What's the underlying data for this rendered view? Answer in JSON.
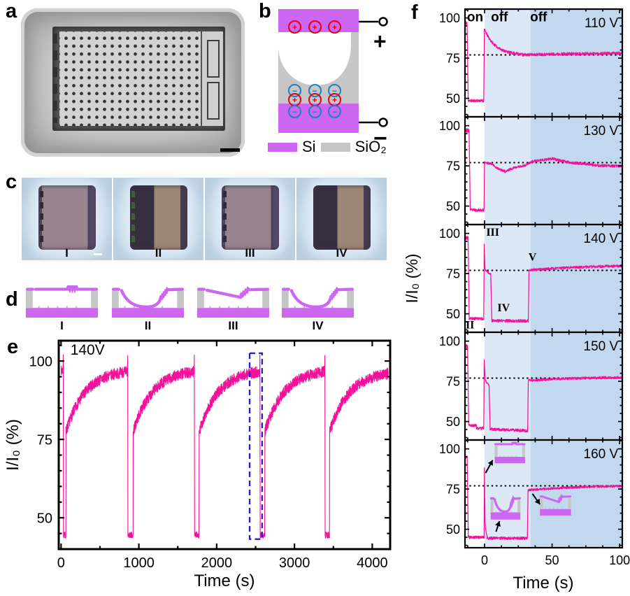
{
  "materials": {
    "si_color": "#cd66f1",
    "sio2_color": "#c6c6c6"
  },
  "panels": {
    "a": {
      "label": "a"
    },
    "b": {
      "label": "b",
      "plus": "+",
      "minus": "−",
      "legend": [
        {
          "label": "Si",
          "color": "#cd66f1"
        },
        {
          "label": "SiO₂",
          "color": "#c3c3c3"
        }
      ]
    },
    "c": {
      "label": "c",
      "item_labels": [
        "I",
        "II",
        "III",
        "IV"
      ]
    },
    "d": {
      "label": "d",
      "item_labels": [
        "I",
        "II",
        "III",
        "IV"
      ],
      "states": [
        "flat",
        "sag",
        "tilt",
        "sag"
      ]
    },
    "e": {
      "label": "e"
    },
    "f": {
      "label": "f"
    }
  },
  "chart_data": [
    {
      "id": "panel-e",
      "type": "line",
      "voltage_annotation": "140V",
      "xlabel": "Time (s)",
      "ylabel": "I/I₀ (%)",
      "xlim": [
        -30,
        4230
      ],
      "ylim": [
        40,
        106.5
      ],
      "xticks": [
        0,
        1000,
        2000,
        3000,
        4000
      ],
      "xminor_step": 500,
      "yticks": [
        50,
        75,
        100
      ],
      "yminor_step": 5,
      "line_color": "#F4109B",
      "seed": 7,
      "highlight_box": {
        "t0": 2424,
        "t1": 2584,
        "v0": 43.2,
        "v1": 102.5,
        "color": "#2222DD"
      },
      "segments": [
        [
          0,
          25,
          97,
          97,
          0,
          1.5
        ],
        [
          25,
          28,
          97,
          101.5,
          0,
          0.5
        ],
        [
          28,
          31,
          101.5,
          45,
          0,
          0.5
        ],
        [
          31,
          62,
          44.5,
          44.5,
          0,
          1.0
        ],
        [
          62,
          63,
          44.5,
          77,
          0,
          0.3
        ],
        [
          63,
          853,
          77.5,
          97.5,
          250,
          1.8
        ],
        [
          853,
          856,
          97,
          101.5,
          0,
          0.5
        ],
        [
          856,
          859,
          101.5,
          45,
          0,
          0.5
        ],
        [
          859,
          925,
          44.5,
          44.5,
          0,
          1.0
        ],
        [
          925,
          927,
          44.5,
          77,
          0,
          0.3
        ],
        [
          927,
          1710,
          77.5,
          97.5,
          250,
          1.8
        ],
        [
          1710,
          1713,
          97,
          101.5,
          0,
          0.5
        ],
        [
          1713,
          1716,
          101.5,
          45,
          0,
          0.5
        ],
        [
          1716,
          1773,
          44.5,
          44.5,
          0,
          1.0
        ],
        [
          1773,
          1775,
          44.5,
          77,
          0,
          0.3
        ],
        [
          1775,
          2553,
          77.5,
          97.5,
          250,
          1.8
        ],
        [
          2553,
          2556,
          97,
          101.5,
          0,
          0.5
        ],
        [
          2556,
          2559,
          101.5,
          45,
          0,
          0.5
        ],
        [
          2559,
          2618,
          44.5,
          44.5,
          0,
          1.0
        ],
        [
          2618,
          2620,
          44.5,
          77,
          0,
          0.3
        ],
        [
          2620,
          3388,
          77.5,
          97.5,
          250,
          1.8
        ],
        [
          3388,
          3391,
          97,
          101.5,
          0,
          0.5
        ],
        [
          3391,
          3394,
          101.5,
          45,
          0,
          0.5
        ],
        [
          3394,
          3450,
          44.5,
          44.5,
          0,
          1.0
        ],
        [
          3450,
          3452,
          44.5,
          77,
          0,
          0.3
        ],
        [
          3452,
          4205,
          77.5,
          97,
          250,
          1.8
        ]
      ]
    },
    {
      "id": "panel-f-110",
      "type": "line",
      "voltage": "110 V",
      "seed": 11,
      "xlim": [
        -14.5,
        102
      ],
      "ylim": [
        38.5,
        105.5
      ],
      "xticks": [
        0,
        50,
        100
      ],
      "xminor_step": 12.5,
      "yticks": [
        50,
        75,
        100
      ],
      "yminor_step": 5,
      "line_color": "#F4109B",
      "dotted_line": 77,
      "bands": [
        [
          0,
          34,
          "#dce8f6"
        ],
        [
          34,
          102,
          "#c2d8ee"
        ]
      ],
      "region_labels": [
        {
          "text": "on",
          "t": -7,
          "v": 101
        },
        {
          "text": "off",
          "t": 11,
          "v": 101
        },
        {
          "text": "off",
          "t": 40,
          "v": 101
        }
      ],
      "segments": [
        [
          -14.5,
          -13,
          97,
          97,
          0,
          1.3
        ],
        [
          -13,
          -12.1,
          97,
          49,
          0,
          0.5
        ],
        [
          -12.1,
          -0.6,
          48.5,
          48.5,
          0,
          0.9
        ],
        [
          -0.6,
          -0.1,
          48.5,
          93,
          0,
          0.3
        ],
        [
          -0.1,
          28,
          93,
          77,
          8,
          0.9
        ],
        [
          28,
          101.5,
          77,
          78.2,
          40,
          0.9
        ]
      ]
    },
    {
      "id": "panel-f-130",
      "type": "line",
      "voltage": "130 V",
      "seed": 23,
      "xlim": [
        -14.5,
        102
      ],
      "ylim": [
        38.5,
        105.5
      ],
      "xticks": [
        0,
        50,
        100
      ],
      "xminor_step": 12.5,
      "yticks": [
        50,
        75,
        100
      ],
      "yminor_step": 5,
      "line_color": "#F4109B",
      "dotted_line": 77,
      "bands": [
        [
          0,
          34,
          "#dce8f6"
        ],
        [
          34,
          102,
          "#c2d8ee"
        ]
      ],
      "segments": [
        [
          -14.5,
          -11.5,
          97,
          97,
          0,
          1.3
        ],
        [
          -11.5,
          -10.6,
          97,
          48,
          0,
          0.5
        ],
        [
          -10.6,
          -0.4,
          47.5,
          47.5,
          0,
          0.9
        ],
        [
          -0.4,
          0,
          47.5,
          77.5,
          0,
          0.3
        ],
        [
          0,
          6,
          77,
          76,
          6,
          0.7
        ],
        [
          6,
          15,
          76,
          71,
          5,
          0.7
        ],
        [
          15,
          31,
          71,
          76.2,
          9,
          0.7
        ],
        [
          31,
          50,
          76.2,
          79.6,
          9,
          0.8
        ],
        [
          50,
          80,
          79.6,
          75.3,
          16,
          0.8
        ],
        [
          80,
          101.5,
          75.3,
          74.8,
          0,
          0.8
        ]
      ]
    },
    {
      "id": "panel-f-140",
      "type": "line",
      "voltage": "140 V",
      "seed": 37,
      "ylabel": "I/I₀ (%)",
      "xlim": [
        -14.5,
        102
      ],
      "ylim": [
        38.5,
        105.5
      ],
      "xticks": [
        0,
        50,
        100
      ],
      "xminor_step": 12.5,
      "yticks": [
        50,
        75,
        100
      ],
      "yminor_step": 5,
      "line_color": "#F4109B",
      "dotted_line": 77,
      "bands": [
        [
          0,
          34,
          "#dce8f6"
        ],
        [
          34,
          102,
          "#c2d8ee"
        ]
      ],
      "roman_annotations": [
        {
          "text": "II",
          "t": -14,
          "v": 41
        },
        {
          "text": "III",
          "t": 1.2,
          "v": 98.5
        },
        {
          "text": "IV",
          "t": 9.5,
          "v": 51.5
        },
        {
          "text": "V",
          "t": 32.5,
          "v": 83
        }
      ],
      "segments": [
        [
          -14.5,
          -12.2,
          97,
          97,
          0,
          1.3
        ],
        [
          -12.2,
          -11.4,
          97,
          48,
          0,
          0.5
        ],
        [
          -11.4,
          -0.6,
          47,
          47,
          0,
          0.9
        ],
        [
          -0.6,
          -0.25,
          47,
          93,
          0,
          0.3
        ],
        [
          -0.25,
          0.35,
          93,
          78,
          0,
          0.4
        ],
        [
          0.35,
          4.6,
          77.5,
          73.5,
          4,
          0.6
        ],
        [
          4.6,
          5.4,
          73.5,
          46,
          0,
          0.4
        ],
        [
          5.4,
          32.4,
          45.6,
          45.6,
          0,
          0.9
        ],
        [
          32.4,
          32.9,
          45.6,
          77,
          0,
          0.3
        ],
        [
          32.9,
          101.5,
          77,
          80.5,
          45,
          0.8
        ]
      ]
    },
    {
      "id": "panel-f-150",
      "type": "line",
      "voltage": "150 V",
      "seed": 49,
      "xlim": [
        -14.5,
        102
      ],
      "ylim": [
        38.5,
        105.5
      ],
      "xticks": [
        0,
        50,
        100
      ],
      "xminor_step": 12.5,
      "yticks": [
        50,
        75,
        100
      ],
      "yminor_step": 5,
      "line_color": "#F4109B",
      "dotted_line": 77,
      "bands": [
        [
          0,
          34,
          "#dce8f6"
        ],
        [
          34,
          102,
          "#c2d8ee"
        ]
      ],
      "segments": [
        [
          -14.5,
          -12.6,
          97,
          97,
          0,
          1.3
        ],
        [
          -12.6,
          -11.8,
          97,
          49,
          0,
          0.5
        ],
        [
          -11.8,
          -6,
          47.5,
          47.5,
          0,
          0.9
        ],
        [
          -6,
          -0.6,
          45.8,
          45.8,
          0,
          0.9
        ],
        [
          -0.6,
          -0.25,
          45.8,
          88,
          0,
          0.3
        ],
        [
          -0.25,
          0.5,
          88,
          76,
          0,
          0.4
        ],
        [
          0.5,
          3.4,
          76,
          71,
          2.5,
          0.5
        ],
        [
          3.4,
          4.1,
          71,
          46,
          0,
          0.4
        ],
        [
          4.1,
          31.9,
          45.2,
          44.3,
          0,
          0.9
        ],
        [
          31.9,
          32.4,
          44.3,
          75.5,
          0,
          0.3
        ],
        [
          32.4,
          101.5,
          75.5,
          77.8,
          40,
          0.8
        ]
      ]
    },
    {
      "id": "panel-f-160",
      "type": "line",
      "voltage": "160 V",
      "seed": 61,
      "xlabel": "Time (s)",
      "xlim": [
        -14.5,
        102
      ],
      "ylim": [
        38.5,
        105.5
      ],
      "xticks": [
        0,
        50,
        100
      ],
      "xminor_step": 12.5,
      "yticks": [
        50,
        75,
        100
      ],
      "yminor_step": 5,
      "line_color": "#F4109B",
      "dotted_line": 77,
      "bands": [
        [
          0,
          34,
          "#dce8f6"
        ],
        [
          34,
          102,
          "#c2d8ee"
        ]
      ],
      "insets": [
        {
          "state": "flat",
          "t0": 7.5,
          "t1": 30,
          "v0": 91,
          "v1": 104.5
        },
        {
          "state": "sag",
          "t0": 4.5,
          "t1": 26.5,
          "v0": 56,
          "v1": 71
        },
        {
          "state": "tilt",
          "t0": 41,
          "t1": 64,
          "v0": 58.5,
          "v1": 72
        }
      ],
      "arrows": [
        [
          0.8,
          85,
          6,
          93
        ],
        [
          8.5,
          48.5,
          11,
          55
        ],
        [
          35.5,
          72,
          41,
          65.5
        ]
      ],
      "segments": [
        [
          -14.5,
          -12.9,
          95,
          95,
          0,
          1.1
        ],
        [
          -12.9,
          -12.1,
          95,
          47,
          0,
          0.5
        ],
        [
          -12.1,
          -0.35,
          45,
          45,
          0,
          0.9
        ],
        [
          -0.35,
          -0.1,
          45,
          88,
          0,
          0.2
        ],
        [
          -0.1,
          0.35,
          88,
          55,
          0,
          0.3
        ],
        [
          0.35,
          1.8,
          55,
          44.8,
          0.8,
          0.5
        ],
        [
          1.8,
          31.7,
          44.4,
          44.4,
          0,
          0.9
        ],
        [
          31.7,
          32.2,
          44.4,
          74.3,
          0,
          0.3
        ],
        [
          32.2,
          101.5,
          74.3,
          77.8,
          50,
          0.7
        ]
      ]
    }
  ]
}
